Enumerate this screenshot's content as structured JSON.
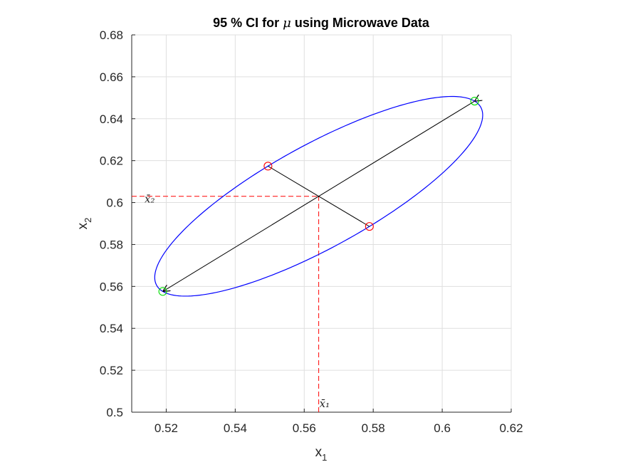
{
  "chart_data": {
    "type": "scatter",
    "title": {
      "prefix": "95 % CI for ",
      "symbol": "μ",
      "suffix": " using Microwave Data"
    },
    "xlabel": {
      "base": "x",
      "sub": "1"
    },
    "ylabel": {
      "base": "x",
      "sub": "2"
    },
    "xlim": [
      0.51,
      0.62
    ],
    "ylim": [
      0.5,
      0.68
    ],
    "xticks": [
      0.52,
      0.54,
      0.56,
      0.58,
      0.6,
      0.62
    ],
    "xtick_labels": [
      "0.52",
      "0.54",
      "0.56",
      "0.58",
      "0.6",
      "0.62"
    ],
    "yticks": [
      0.5,
      0.52,
      0.54,
      0.56,
      0.58,
      0.6,
      0.62,
      0.64,
      0.66,
      0.68
    ],
    "ytick_labels": [
      "0.5",
      "0.52",
      "0.54",
      "0.56",
      "0.58",
      "0.6",
      "0.62",
      "0.64",
      "0.66",
      "0.68"
    ],
    "grid": true,
    "mean": {
      "x": 0.5642,
      "y": 0.603
    },
    "mean_labels": {
      "x": "x̄₁",
      "y": "x̄₂"
    },
    "ellipse": {
      "color": "#0000ff",
      "center": [
        0.5642,
        0.603
      ],
      "major_axis_end_a": [
        0.6094,
        0.6484
      ],
      "major_axis_end_b": [
        0.519,
        0.5576
      ],
      "minor_axis_end_a": [
        0.5495,
        0.6174
      ],
      "minor_axis_end_b": [
        0.5789,
        0.5886
      ]
    },
    "major_axis_points": {
      "color": "#00dd00",
      "points": [
        [
          0.6094,
          0.6484
        ],
        [
          0.519,
          0.5576
        ]
      ]
    },
    "minor_axis_points": {
      "color": "#ff0000",
      "points": [
        [
          0.5495,
          0.6174
        ],
        [
          0.5789,
          0.5886
        ]
      ]
    },
    "arrows_color": "#000000",
    "mean_lines_color": "#ff0000"
  }
}
